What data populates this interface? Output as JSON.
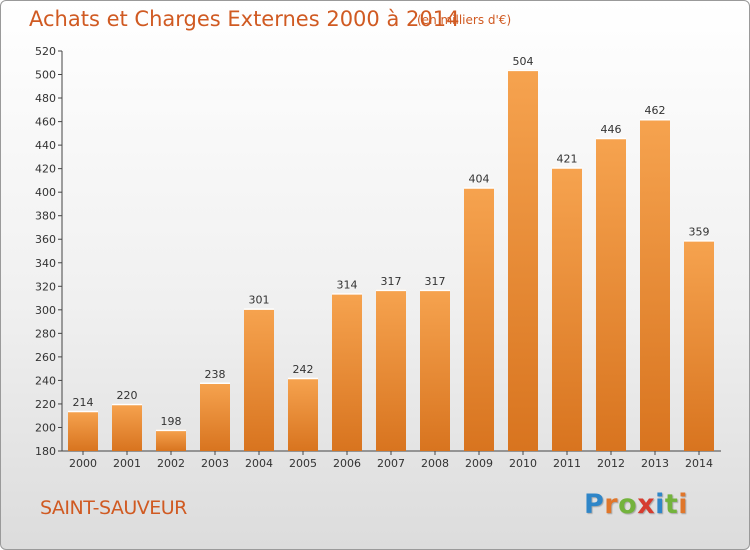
{
  "title": "Achats et Charges Externes 2000 à 2014",
  "unit_note": "(en milliers d'€)",
  "commune": "SAINT-SAUVEUR",
  "logo": {
    "letters": [
      "P",
      "r",
      "o",
      "x",
      "i",
      "t",
      "i"
    ],
    "colors": [
      "#2f86c8",
      "#e0762a",
      "#73b33c",
      "#d63c2f",
      "#2f86c8",
      "#73b33c",
      "#e0762a"
    ]
  },
  "colors": {
    "bar_top": "#f6a34f",
    "bar_bottom": "#d8741f",
    "title": "#d05a22"
  },
  "chart_data": {
    "type": "bar",
    "title": "Achats et Charges Externes 2000 à 2014",
    "categories": [
      "2000",
      "2001",
      "2002",
      "2003",
      "2004",
      "2005",
      "2006",
      "2007",
      "2008",
      "2009",
      "2010",
      "2011",
      "2012",
      "2013",
      "2014"
    ],
    "values": [
      214,
      220,
      198,
      238,
      301,
      242,
      314,
      317,
      317,
      404,
      504,
      421,
      446,
      462,
      359
    ],
    "ylim": [
      180,
      520
    ],
    "yticks": [
      180,
      200,
      220,
      240,
      260,
      280,
      300,
      320,
      340,
      360,
      380,
      400,
      420,
      440,
      460,
      480,
      500,
      520
    ],
    "grid": false,
    "legend": "none"
  }
}
